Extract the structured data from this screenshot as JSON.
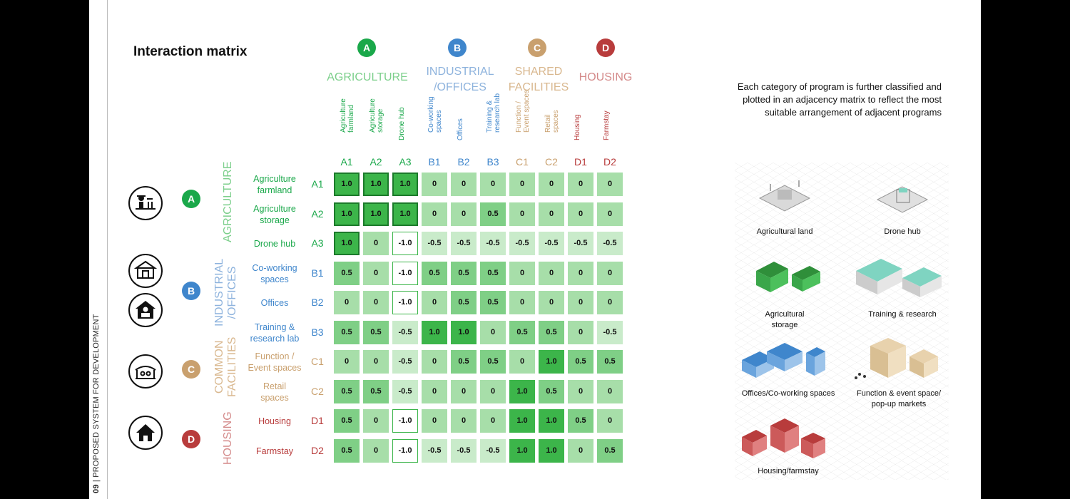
{
  "spine": {
    "page_number": "09",
    "separator": "|",
    "text": "PROPOSED SYSTEM FOR DEVELOPMENT"
  },
  "title": "Interaction matrix",
  "description": "Each category of program is further classified and plotted in an adjacency matrix to reflect the most suitable arrangement of adjacent programs",
  "colors": {
    "A": "#1aa84a",
    "B": "#3f86cc",
    "C": "#c9a06e",
    "D": "#b83c3c",
    "A_text": "#7ccf8b",
    "B_text": "#8eb3dd",
    "C_text": "#d9b88f",
    "D_text": "#d48a8a"
  },
  "categories": [
    {
      "letter": "A",
      "name_lines": [
        "AGRICULTURE"
      ],
      "side_lines": [
        "AGRICULTURE"
      ]
    },
    {
      "letter": "B",
      "name_lines": [
        "INDUSTRIAL",
        "/OFFICES"
      ],
      "side_lines": [
        "INDUSTRIAL",
        "/OFFICES"
      ]
    },
    {
      "letter": "C",
      "name_lines": [
        "SHARED",
        "FACILITIES"
      ],
      "side_lines": [
        "COMMON",
        "FACILITIES"
      ]
    },
    {
      "letter": "D",
      "name_lines": [
        "HOUSING"
      ],
      "side_lines": [
        "HOUSING"
      ]
    }
  ],
  "columns": [
    {
      "code": "A1",
      "cat": "A",
      "label": [
        "Agriculture",
        "farmland"
      ]
    },
    {
      "code": "A2",
      "cat": "A",
      "label": [
        "Agriculture",
        "storage"
      ]
    },
    {
      "code": "A3",
      "cat": "A",
      "label": [
        "Drone hub"
      ]
    },
    {
      "code": "B1",
      "cat": "B",
      "label": [
        "Co-working",
        "spaces"
      ]
    },
    {
      "code": "B2",
      "cat": "B",
      "label": [
        "Offices"
      ]
    },
    {
      "code": "B3",
      "cat": "B",
      "label": [
        "Training &",
        "research lab"
      ]
    },
    {
      "code": "C1",
      "cat": "C",
      "label": [
        "Function /",
        "Event spaces"
      ]
    },
    {
      "code": "C2",
      "cat": "C",
      "label": [
        "Retail",
        "spaces"
      ]
    },
    {
      "code": "D1",
      "cat": "D",
      "label": [
        "Housing"
      ]
    },
    {
      "code": "D2",
      "cat": "D",
      "label": [
        "Farmstay"
      ]
    }
  ],
  "rows": [
    {
      "code": "A1",
      "cat": "A",
      "label": [
        "Agriculture",
        "farmland"
      ]
    },
    {
      "code": "A2",
      "cat": "A",
      "label": [
        "Agriculture",
        "storage"
      ]
    },
    {
      "code": "A3",
      "cat": "A",
      "label": [
        "Drone hub"
      ]
    },
    {
      "code": "B1",
      "cat": "B",
      "label": [
        "Co-working",
        "spaces"
      ]
    },
    {
      "code": "B2",
      "cat": "B",
      "label": [
        "Offices"
      ]
    },
    {
      "code": "B3",
      "cat": "B",
      "label": [
        "Training &",
        "research lab"
      ]
    },
    {
      "code": "C1",
      "cat": "C",
      "label": [
        "Function /",
        "Event spaces"
      ]
    },
    {
      "code": "C2",
      "cat": "C",
      "label": [
        "Retail",
        "spaces"
      ]
    },
    {
      "code": "D1",
      "cat": "D",
      "label": [
        "Housing"
      ]
    },
    {
      "code": "D2",
      "cat": "D",
      "label": [
        "Farmstay"
      ]
    }
  ],
  "matrix": [
    [
      "1.0",
      "1.0",
      "1.0",
      "0",
      "0",
      "0",
      "0",
      "0",
      "0",
      "0"
    ],
    [
      "1.0",
      "1.0",
      "1.0",
      "0",
      "0",
      "0.5",
      "0",
      "0",
      "0",
      "0"
    ],
    [
      "1.0",
      "0",
      "-1.0",
      "-0.5",
      "-0.5",
      "-0.5",
      "-0.5",
      "-0.5",
      "-0.5",
      "-0.5"
    ],
    [
      "0.5",
      "0",
      "-1.0",
      "0.5",
      "0.5",
      "0.5",
      "0",
      "0",
      "0",
      "0"
    ],
    [
      "0",
      "0",
      "-1.0",
      "0",
      "0.5",
      "0.5",
      "0",
      "0",
      "0",
      "0"
    ],
    [
      "0.5",
      "0.5",
      "-0.5",
      "1.0",
      "1.0",
      "0",
      "0.5",
      "0.5",
      "0",
      "-0.5"
    ],
    [
      "0",
      "0",
      "-0.5",
      "0",
      "0.5",
      "0.5",
      "0",
      "1.0",
      "0.5",
      "0.5"
    ],
    [
      "0.5",
      "0.5",
      "-0.5",
      "0",
      "0",
      "0",
      "1.0",
      "0.5",
      "0",
      "0"
    ],
    [
      "0.5",
      "0",
      "-1.0",
      "0",
      "0",
      "0",
      "1.0",
      "1.0",
      "0.5",
      "0"
    ],
    [
      "0.5",
      "0",
      "-1.0",
      "-0.5",
      "-0.5",
      "-0.5",
      "1.0",
      "1.0",
      "0",
      "0.5"
    ]
  ],
  "illustrations": [
    {
      "label_lines": [
        "Agricultural land"
      ]
    },
    {
      "label_lines": [
        "Drone hub"
      ]
    },
    {
      "label_lines": [
        "Agricultural",
        "storage"
      ]
    },
    {
      "label_lines": [
        "Training & research"
      ]
    },
    {
      "label_lines": [
        "Offices/Co-working spaces"
      ]
    },
    {
      "label_lines": [
        "Function & event space/",
        "pop-up markets"
      ]
    },
    {
      "label_lines": [
        "Housing/farmstay"
      ]
    }
  ]
}
